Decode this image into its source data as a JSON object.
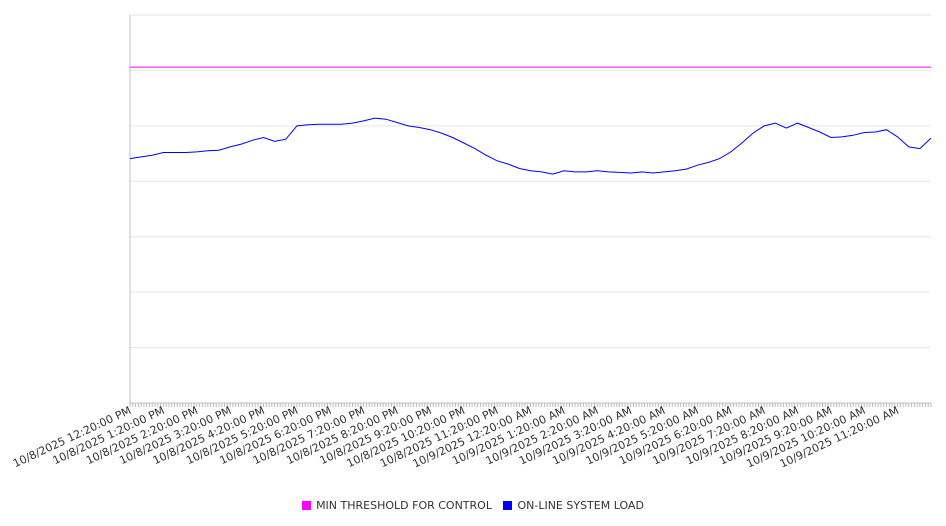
{
  "chart_data": {
    "type": "line",
    "title": "",
    "xlabel": "",
    "ylabel": "",
    "ylim": [
      0,
      70
    ],
    "y_grid_step": 10,
    "y_tick_labels_shown": false,
    "grid": true,
    "x_start": "10/8/2025 12:20:00 PM",
    "x_end": "10/9/2025 12:20:00 PM",
    "x_interval_minutes": 20,
    "x_minor_tick_minutes": 5,
    "x_tick_labels": [
      "10/8/2025 12:20:00 PM",
      "10/8/2025 1:20:00 PM",
      "10/8/2025 2:20:00 PM",
      "10/8/2025 3:20:00 PM",
      "10/8/2025 4:20:00 PM",
      "10/8/2025 5:20:00 PM",
      "10/8/2025 6:20:00 PM",
      "10/8/2025 7:20:00 PM",
      "10/8/2025 8:20:00 PM",
      "10/8/2025 9:20:00 PM",
      "10/8/2025 10:20:00 PM",
      "10/8/2025 11:20:00 PM",
      "10/9/2025 12:20:00 AM",
      "10/9/2025 1:20:00 AM",
      "10/9/2025 2:20:00 AM",
      "10/9/2025 3:20:00 AM",
      "10/9/2025 4:20:00 AM",
      "10/9/2025 5:20:00 AM",
      "10/9/2025 6:20:00 AM",
      "10/9/2025 7:20:00 AM",
      "10/9/2025 8:20:00 AM",
      "10/9/2025 9:20:00 AM",
      "10/9/2025 10:20:00 AM",
      "10/9/2025 11:20:00 AM"
    ],
    "legend_position": "bottom-center",
    "series": [
      {
        "name": "MIN THRESHOLD FOR CONTROL",
        "color": "#ff00ff",
        "constant": 60.6
      },
      {
        "name": "ON-LINE SYSTEM LOAD",
        "color": "#0000ff",
        "values": [
          44.1,
          44.4,
          44.7,
          45.2,
          45.2,
          45.2,
          45.3,
          45.5,
          45.6,
          46.2,
          46.7,
          47.4,
          47.9,
          47.2,
          47.6,
          50.0,
          50.2,
          50.3,
          50.3,
          50.3,
          50.5,
          50.9,
          51.4,
          51.2,
          50.6,
          50.0,
          49.7,
          49.3,
          48.7,
          47.9,
          46.9,
          45.9,
          44.7,
          43.7,
          43.1,
          42.3,
          41.9,
          41.7,
          41.3,
          41.9,
          41.7,
          41.7,
          41.9,
          41.7,
          41.6,
          41.5,
          41.7,
          41.5,
          41.7,
          41.9,
          42.2,
          42.9,
          43.4,
          44.1,
          45.3,
          46.9,
          48.7,
          50.0,
          50.5,
          49.6,
          50.5,
          49.7,
          48.9,
          47.9,
          48.0,
          48.3,
          48.8,
          48.9,
          49.3,
          48.0,
          46.2,
          45.9,
          47.8
        ]
      }
    ]
  }
}
